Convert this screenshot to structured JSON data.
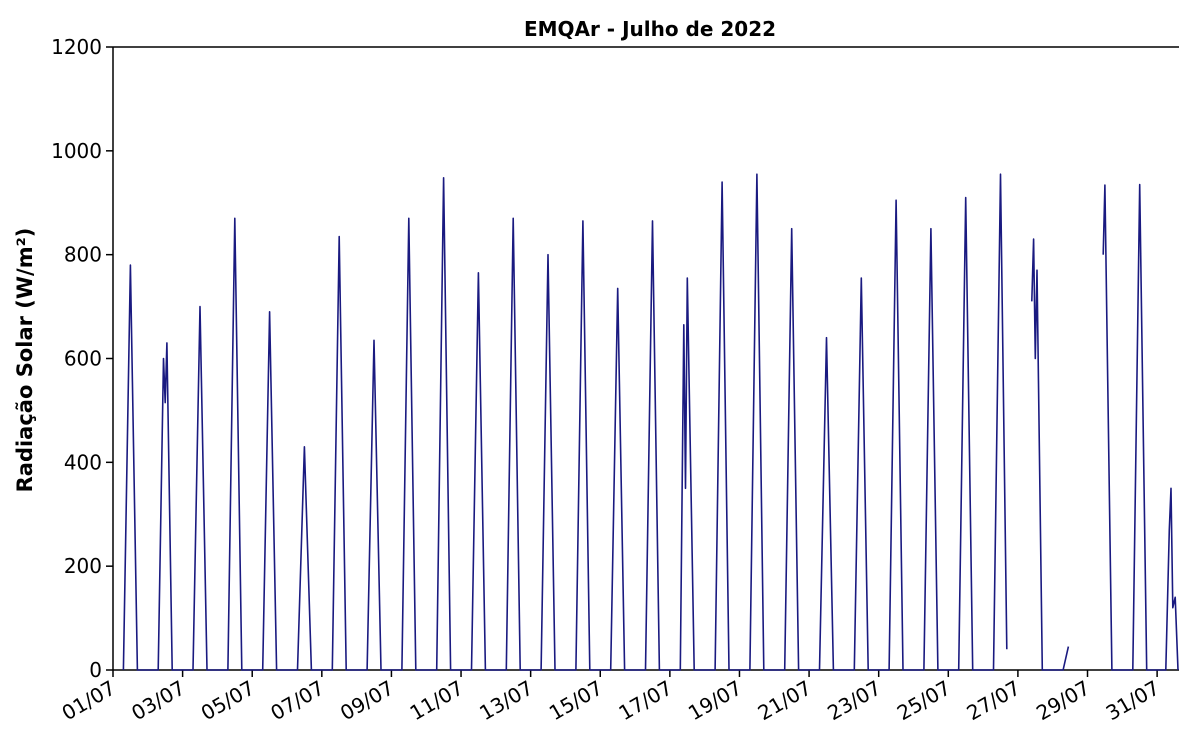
{
  "chart_data": {
    "type": "line",
    "title": "EMQAr - Julho de  2022",
    "y_label": "Radiação Solar  (W/m²)",
    "xlim": [
      1,
      31.6
    ],
    "ylim": [
      0,
      1200
    ],
    "yticks": [
      0,
      200,
      400,
      600,
      800,
      1000,
      1200
    ],
    "xticks": [
      {
        "value": 1,
        "label": "01/07"
      },
      {
        "value": 3,
        "label": "03/07"
      },
      {
        "value": 5,
        "label": "05/07"
      },
      {
        "value": 7,
        "label": "07/07"
      },
      {
        "value": 9,
        "label": "09/07"
      },
      {
        "value": 11,
        "label": "11/07"
      },
      {
        "value": 13,
        "label": "13/07"
      },
      {
        "value": 15,
        "label": "15/07"
      },
      {
        "value": 17,
        "label": "17/07"
      },
      {
        "value": 19,
        "label": "19/07"
      },
      {
        "value": 21,
        "label": "21/07"
      },
      {
        "value": 23,
        "label": "23/07"
      },
      {
        "value": 25,
        "label": "25/07"
      },
      {
        "value": 27,
        "label": "27/07"
      },
      {
        "value": 29,
        "label": "29/07"
      },
      {
        "value": 31,
        "label": "31/07"
      }
    ],
    "series": [
      {
        "color": "#1a1a80",
        "x": [
          1.3,
          1.5,
          1.7,
          2.3,
          2.45,
          2.5,
          2.55,
          2.7,
          3.3,
          3.5,
          3.7,
          4.3,
          4.5,
          4.7,
          5.3,
          5.5,
          5.7,
          6.3,
          6.5,
          6.7,
          7.3,
          7.5,
          7.7,
          8.3,
          8.5,
          8.7,
          9.3,
          9.5,
          9.7,
          10.3,
          10.5,
          10.7,
          11.3,
          11.5,
          11.7,
          12.3,
          12.5,
          12.7,
          13.3,
          13.5,
          13.7,
          14.3,
          14.5,
          14.7,
          15.3,
          15.5,
          15.7,
          16.3,
          16.5,
          16.7,
          17.3,
          17.4,
          17.45,
          17.5,
          17.7,
          18.3,
          18.5,
          18.7,
          19.3,
          19.5,
          19.7,
          20.3,
          20.5,
          20.7,
          21.3,
          21.5,
          21.7,
          22.3,
          22.5,
          22.7,
          23.3,
          23.5,
          23.7,
          24.3,
          24.5,
          24.7,
          25.3,
          25.5,
          25.7,
          26.3,
          26.5,
          26.68,
          26.8,
          27.4,
          27.45,
          27.5,
          27.55,
          27.7,
          28.3,
          28.45,
          28.5,
          29.45,
          29.5,
          29.7,
          30.3,
          30.5,
          30.7,
          31.25,
          31.35,
          31.4,
          31.45,
          31.52,
          31.6
        ],
        "values": [
          0,
          780,
          0,
          0,
          600,
          515,
          630,
          0,
          0,
          700,
          0,
          0,
          870,
          0,
          0,
          690,
          0,
          0,
          430,
          0,
          0,
          835,
          0,
          0,
          635,
          0,
          0,
          870,
          0,
          0,
          948,
          0,
          0,
          765,
          0,
          0,
          870,
          0,
          0,
          800,
          0,
          0,
          865,
          0,
          0,
          735,
          0,
          0,
          865,
          0,
          0,
          665,
          350,
          755,
          0,
          0,
          940,
          0,
          0,
          955,
          0,
          0,
          850,
          0,
          0,
          640,
          0,
          0,
          755,
          0,
          0,
          905,
          0,
          0,
          850,
          0,
          0,
          910,
          0,
          0,
          955,
          40,
          null,
          710,
          830,
          600,
          770,
          0,
          0,
          45,
          null,
          800,
          934,
          0,
          0,
          935,
          0,
          0,
          270,
          350,
          120,
          140,
          0
        ]
      }
    ]
  }
}
